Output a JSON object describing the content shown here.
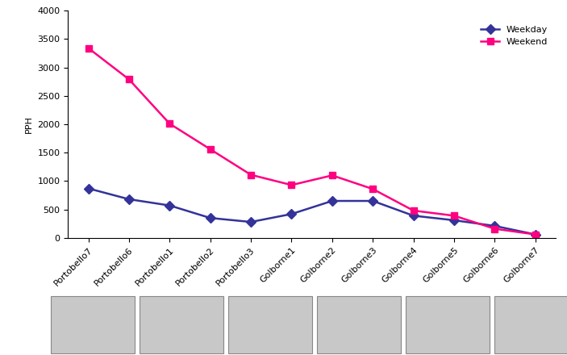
{
  "chart_data": {
    "type": "line",
    "categories": [
      "Portobello7",
      "Portobello6",
      "Portobello1",
      "Portobello2",
      "Portobello3",
      "Golborne1",
      "Golborne2",
      "Golborne3",
      "Golborne4",
      "Golborne5",
      "Golborne6",
      "Golborne7"
    ],
    "y_label": "PPH",
    "series": [
      {
        "name": "Weekday",
        "color": "#333399",
        "marker": "diamond",
        "line_style": "solid",
        "values": [
          870,
          680,
          570,
          350,
          280,
          420,
          650,
          650,
          390,
          310,
          210,
          60
        ]
      },
      {
        "name": "Weekend",
        "color": "#ff0080",
        "marker": "square",
        "line_style": "solid",
        "values": [
          3340,
          2790,
          2010,
          1560,
          1110,
          930,
          1100,
          860,
          480,
          390,
          160,
          60
        ]
      }
    ],
    "ylim": [
      0,
      4000
    ],
    "yticks": [
      0,
      500,
      1000,
      1500,
      2000,
      2500,
      3000,
      3500,
      4000
    ],
    "grid": false,
    "legend": "upper right"
  }
}
